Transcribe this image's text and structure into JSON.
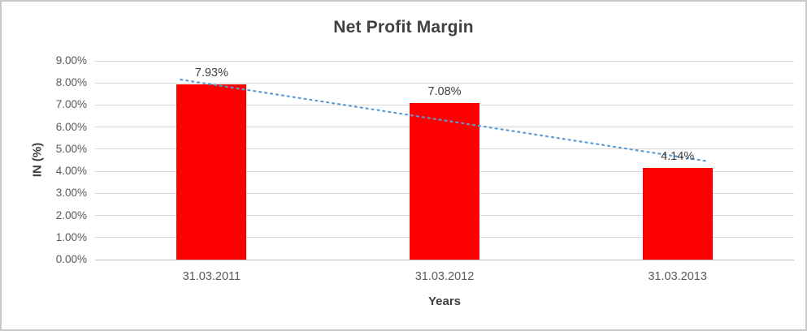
{
  "chart": {
    "title": "Net Profit Margin",
    "x_axis_title": "Years",
    "y_axis_title": "IN (%)"
  },
  "chart_data": {
    "type": "bar",
    "title": "Net Profit Margin",
    "xlabel": "Years",
    "ylabel": "IN (%)",
    "categories": [
      "31.03.2011",
      "31.03.2012",
      "31.03.2013"
    ],
    "values": [
      7.93,
      7.08,
      4.14
    ],
    "data_labels": [
      "7.93%",
      "7.08%",
      "4.14%"
    ],
    "y_ticks": [
      "9.00%",
      "8.00%",
      "7.00%",
      "6.00%",
      "5.00%",
      "4.00%",
      "3.00%",
      "2.00%",
      "1.00%",
      "0.00%"
    ],
    "ylim": [
      0,
      9
    ],
    "y_step": 1,
    "grid": true,
    "legend": "none",
    "bar_color": "#FF0000",
    "grid_color": "#D9D9D9",
    "axis_text_color": "#595959",
    "title_color": "#404040",
    "trendline": {
      "style": "dotted",
      "color": "#5B9BD5",
      "start_value": 8.15,
      "end_value": 4.45
    }
  }
}
